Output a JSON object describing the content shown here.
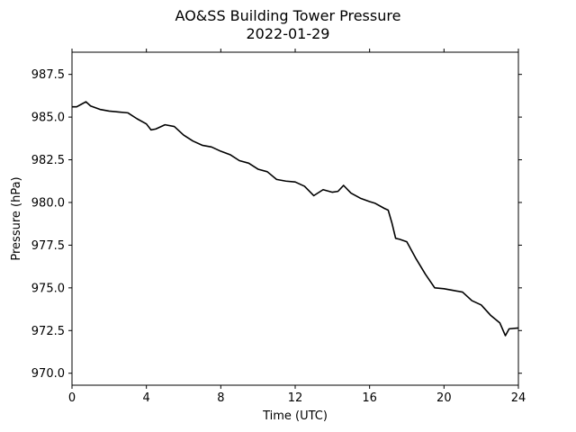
{
  "chart_data": {
    "type": "line",
    "title": "AO&SS Building Tower Pressure",
    "subtitle": "2022-01-29",
    "xlabel": "Time (UTC)",
    "ylabel": "Pressure (hPa)",
    "xlim": [
      0,
      24
    ],
    "ylim": [
      969.3,
      988.8
    ],
    "xticks": [
      0,
      4,
      8,
      12,
      16,
      20,
      24
    ],
    "yticks": [
      970.0,
      972.5,
      975.0,
      977.5,
      980.0,
      982.5,
      985.0,
      987.5
    ],
    "grid": false,
    "series": [
      {
        "color": "#000000",
        "x": [
          0,
          0.25,
          0.5,
          0.75,
          1.0,
          1.25,
          1.5,
          2.0,
          2.5,
          3.0,
          3.5,
          4.0,
          4.25,
          4.5,
          5.0,
          5.5,
          6.0,
          6.5,
          7.0,
          7.5,
          8.0,
          8.5,
          9.0,
          9.5,
          10.0,
          10.5,
          11.0,
          11.5,
          12.0,
          12.5,
          13.0,
          13.5,
          14.0,
          14.3,
          14.6,
          15.0,
          15.5,
          16.0,
          16.3,
          16.8,
          17.0,
          17.2,
          17.4,
          17.6,
          18.0,
          18.5,
          19.0,
          19.5,
          20.0,
          20.5,
          21.0,
          21.5,
          22.0,
          22.5,
          23.0,
          23.3,
          23.5,
          24.0
        ],
        "y": [
          985.6,
          985.6,
          985.75,
          985.9,
          985.65,
          985.55,
          985.45,
          985.35,
          985.3,
          985.25,
          984.9,
          984.6,
          984.25,
          984.3,
          984.55,
          984.45,
          983.95,
          983.6,
          983.35,
          983.25,
          983.0,
          982.8,
          982.45,
          982.3,
          981.95,
          981.8,
          981.35,
          981.25,
          981.2,
          980.95,
          980.4,
          980.75,
          980.6,
          980.65,
          981.0,
          980.55,
          980.25,
          980.05,
          979.95,
          979.65,
          979.55,
          978.8,
          977.9,
          977.85,
          977.7,
          976.7,
          975.8,
          975.0,
          974.95,
          974.85,
          974.75,
          974.25,
          974.0,
          973.4,
          972.95,
          972.2,
          972.6,
          972.65
        ]
      }
    ]
  }
}
